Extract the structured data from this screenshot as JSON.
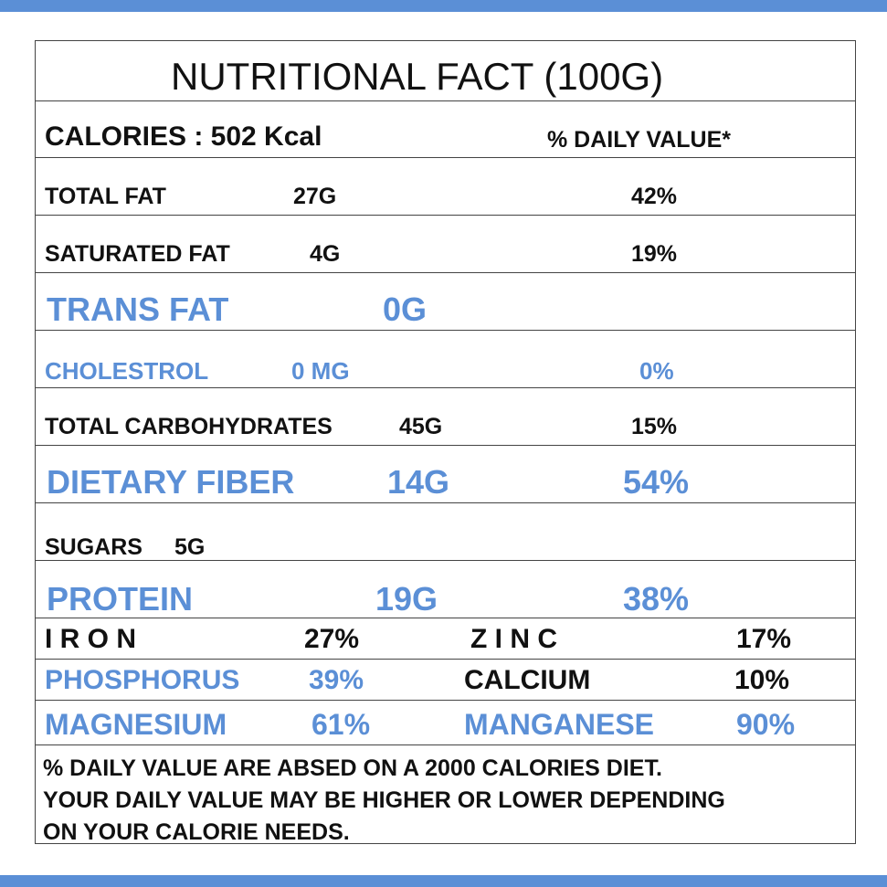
{
  "colors": {
    "accent": "#5b8fd6",
    "text": "#111111"
  },
  "title": "NUTRITIONAL FACT (100G)",
  "calories": {
    "label": "CALORIES : 502 Kcal",
    "dv_header": "% DAILY VALUE*"
  },
  "rows": {
    "total_fat": {
      "name": "TOTAL FAT",
      "amount": "27G",
      "dv": "42%"
    },
    "saturated_fat": {
      "name": "SATURATED FAT",
      "amount": "4G",
      "dv": "19%"
    },
    "trans_fat": {
      "name": "TRANS FAT",
      "amount": "0G"
    },
    "cholesterol": {
      "name": "CHOLESTROL",
      "amount": "0 MG",
      "dv": "0%"
    },
    "total_carbs": {
      "name": "TOTAL CARBOHYDRATES",
      "amount": "45G",
      "dv": "15%"
    },
    "dietary_fiber": {
      "name": "DIETARY FIBER",
      "amount": "14G",
      "dv": "54%"
    },
    "sugars": {
      "name": "SUGARS",
      "amount": "5G"
    },
    "protein": {
      "name": "PROTEIN",
      "amount": "19G",
      "dv": "38%"
    }
  },
  "minerals": {
    "iron": {
      "name": "I R O N",
      "dv": "27%"
    },
    "zinc": {
      "name": "Z I N C",
      "dv": "17%"
    },
    "phosphorus": {
      "name": "PHOSPHORUS",
      "dv": "39%"
    },
    "calcium": {
      "name": "CALCIUM",
      "dv": "10%"
    },
    "magnesium": {
      "name": "MAGNESIUM",
      "dv": "61%"
    },
    "manganese": {
      "name": "MANGANESE",
      "dv": "90%"
    }
  },
  "footnote": {
    "line1": "% DAILY VALUE ARE ABSED ON A 2000 CALORIES DIET.",
    "line2": "YOUR DAILY VALUE MAY BE HIGHER OR LOWER DEPENDING",
    "line3": "ON YOUR CALORIE NEEDS."
  }
}
